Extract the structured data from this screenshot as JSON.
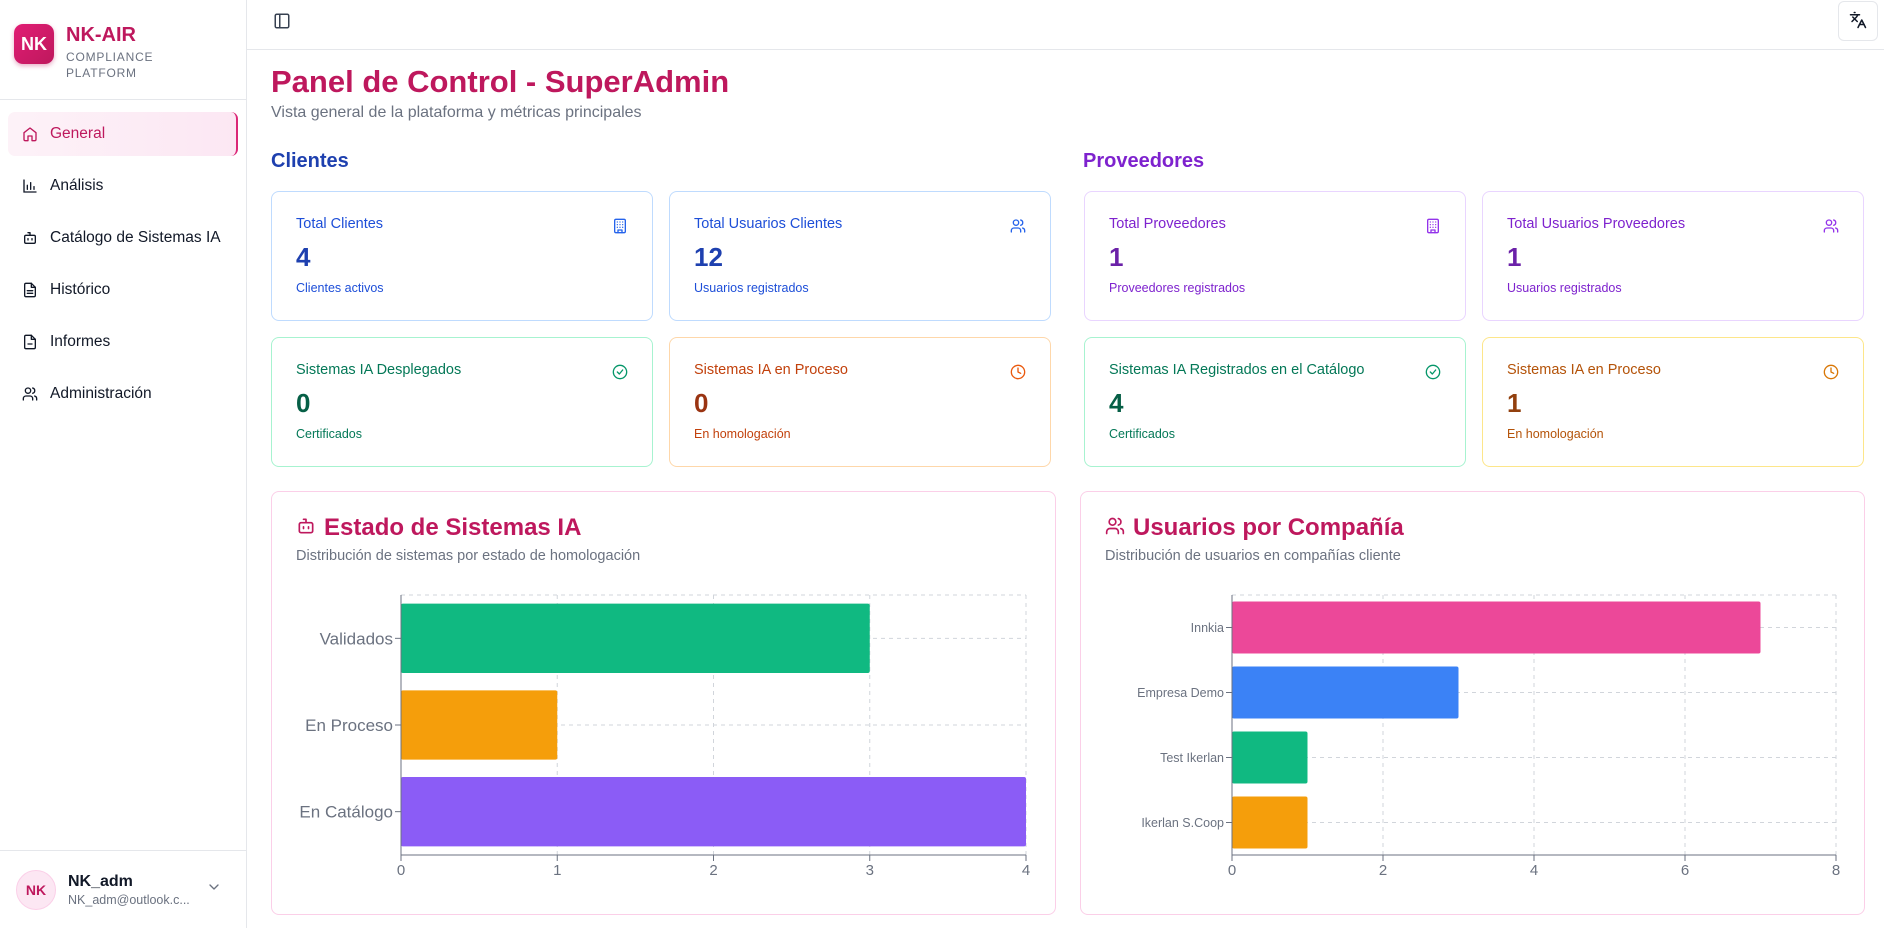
{
  "brand": {
    "logo": "NK",
    "name": "NK-AIR",
    "subtitle_line1": "COMPLIANCE",
    "subtitle_line2": "PLATFORM"
  },
  "sidebar": {
    "items": [
      {
        "label": "General",
        "icon": "home-icon",
        "active": true
      },
      {
        "label": "Análisis",
        "icon": "bar-chart-icon"
      },
      {
        "label": "Catálogo de Sistemas IA",
        "icon": "bot-icon"
      },
      {
        "label": "Histórico",
        "icon": "file-text-icon"
      },
      {
        "label": "Informes",
        "icon": "file-icon"
      },
      {
        "label": "Administración",
        "icon": "users-icon"
      }
    ]
  },
  "user": {
    "initials": "NK",
    "name": "NK_adm",
    "email": "NK_adm@outlook.c..."
  },
  "topbar": {
    "sidebar_toggle_icon": "panel-left-icon",
    "language_icon": "translate-icon"
  },
  "page": {
    "title": "Panel de Control - SuperAdmin",
    "subtitle": "Vista general de la plataforma y métricas principales"
  },
  "sections": {
    "clients": "Clientes",
    "providers": "Proveedores"
  },
  "cards": {
    "total_clients": {
      "title": "Total Clientes",
      "value": "4",
      "desc": "Clientes activos",
      "icon": "building-icon"
    },
    "total_client_users": {
      "title": "Total Usuarios Clientes",
      "value": "12",
      "desc": "Usuarios registrados",
      "icon": "users-icon"
    },
    "ai_deployed": {
      "title": "Sistemas IA Desplegados",
      "value": "0",
      "desc": "Certificados",
      "icon": "check-circle-icon"
    },
    "ai_in_process_clients": {
      "title": "Sistemas IA en Proceso",
      "value": "0",
      "desc": "En homologación",
      "icon": "clock-icon"
    },
    "total_providers": {
      "title": "Total Proveedores",
      "value": "1",
      "desc": "Proveedores registrados",
      "icon": "building-icon"
    },
    "total_provider_users": {
      "title": "Total Usuarios Proveedores",
      "value": "1",
      "desc": "Usuarios registrados",
      "icon": "users-icon"
    },
    "ai_catalog": {
      "title": "Sistemas IA Registrados en el Catálogo",
      "value": "4",
      "desc": "Certificados",
      "icon": "check-circle-icon"
    },
    "ai_in_process_providers": {
      "title": "Sistemas IA en Proceso",
      "value": "1",
      "desc": "En homologación",
      "icon": "clock-icon"
    }
  },
  "charts": {
    "status": {
      "title": "Estado de Sistemas IA",
      "subtitle": "Distribución de sistemas por estado de homologación",
      "icon": "bot-icon"
    },
    "users": {
      "title": "Usuarios por Compañía",
      "subtitle": "Distribución de usuarios en compañías cliente",
      "icon": "users-icon"
    }
  },
  "chart_data": [
    {
      "type": "bar",
      "orientation": "horizontal",
      "categories": [
        "Validados",
        "En Proceso",
        "En Catálogo"
      ],
      "values": [
        3,
        1,
        4
      ],
      "colors": [
        "#10b981",
        "#f59e0b",
        "#8b5cf6"
      ],
      "xlim": [
        0,
        4
      ],
      "xticks": [
        0,
        1,
        2,
        3,
        4
      ],
      "grid": true
    },
    {
      "type": "bar",
      "orientation": "horizontal",
      "categories": [
        "Innkia",
        "Empresa Demo",
        "Test Ikerlan",
        "Ikerlan S.Coop"
      ],
      "values": [
        7,
        3,
        1,
        1
      ],
      "colors": [
        "#ec4899",
        "#3b82f6",
        "#10b981",
        "#f59e0b"
      ],
      "xlim": [
        0,
        8
      ],
      "xticks": [
        0,
        2,
        4,
        6,
        8
      ],
      "grid": true
    }
  ]
}
